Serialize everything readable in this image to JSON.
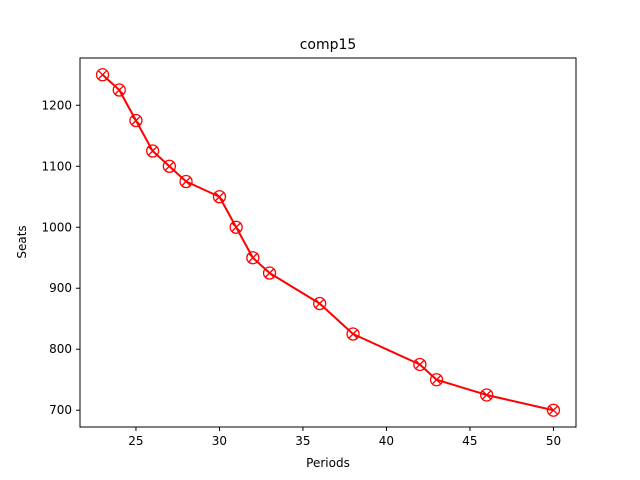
{
  "chart_data": {
    "type": "line",
    "title": "comp15",
    "xlabel": "Periods",
    "ylabel": "Seats",
    "xlim": [
      21.65,
      51.35
    ],
    "ylim": [
      672.5,
      1277.5
    ],
    "xticks": [
      25,
      30,
      35,
      40,
      45,
      50
    ],
    "yticks": [
      700,
      800,
      900,
      1000,
      1100,
      1200
    ],
    "grid": false,
    "legend": "none",
    "series": [
      {
        "color": "#ff0000",
        "marker": "circle-x",
        "x": [
          23,
          24,
          25,
          26,
          27,
          28,
          30,
          31,
          32,
          33,
          36,
          38,
          42,
          43,
          46,
          50
        ],
        "y": [
          1250,
          1225,
          1175,
          1125,
          1100,
          1075,
          1050,
          1000,
          950,
          925,
          875,
          825,
          775,
          750,
          725,
          700
        ]
      }
    ]
  }
}
